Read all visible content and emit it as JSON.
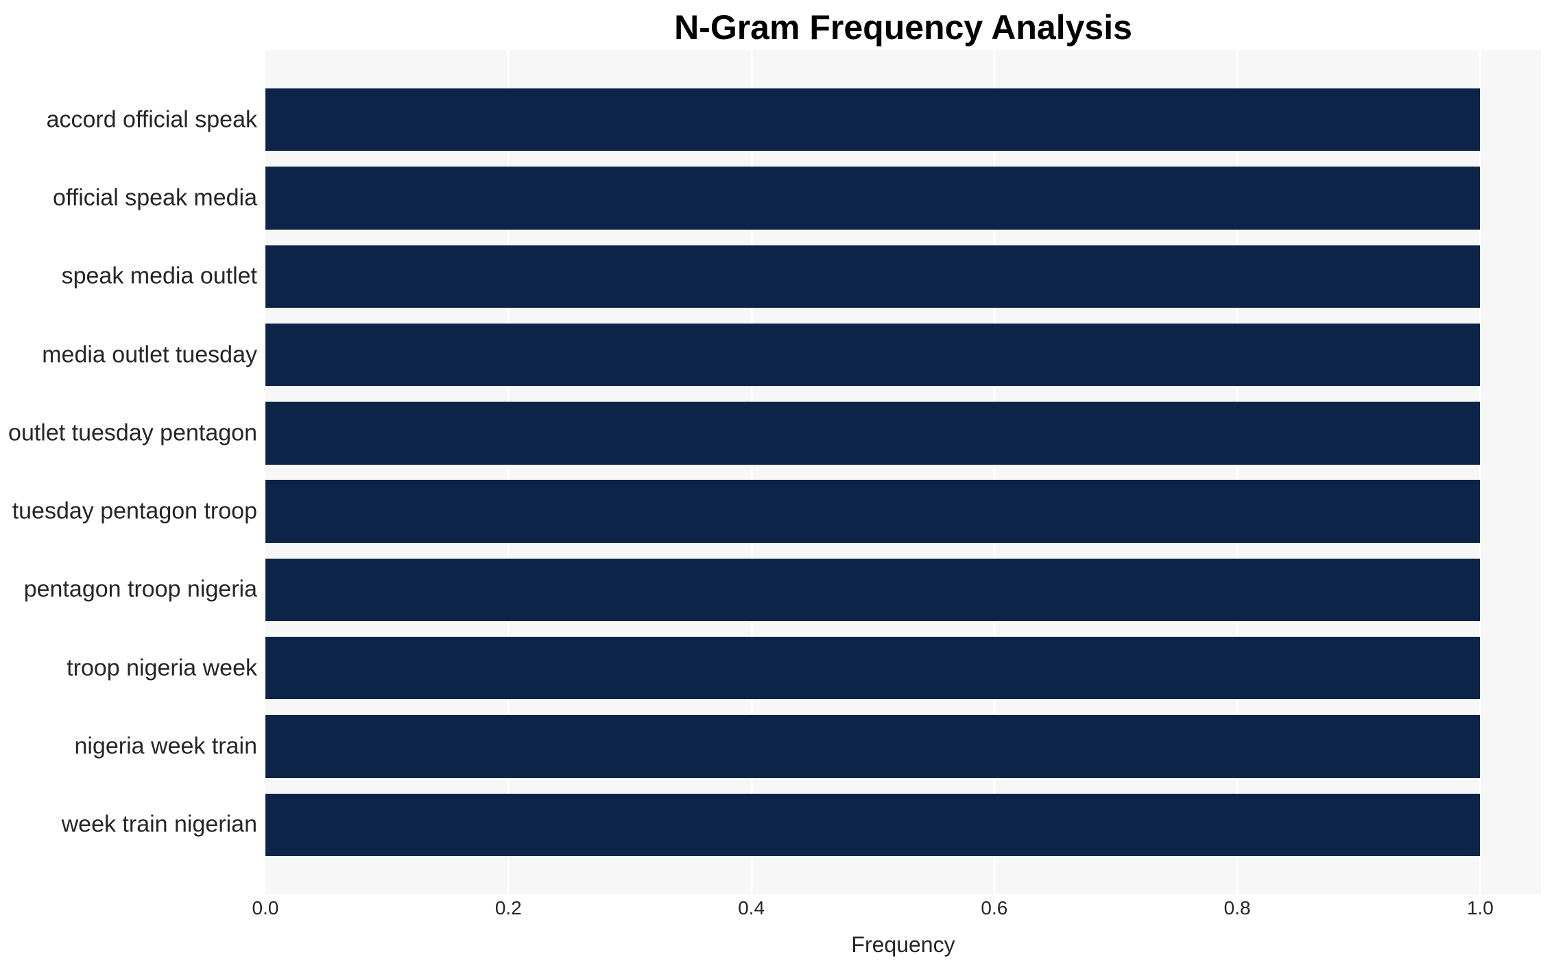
{
  "chart_data": {
    "type": "bar",
    "orientation": "horizontal",
    "title": "N-Gram Frequency Analysis",
    "xlabel": "Frequency",
    "ylabel": "",
    "categories": [
      "accord official speak",
      "official speak media",
      "speak media outlet",
      "media outlet tuesday",
      "outlet tuesday pentagon",
      "tuesday pentagon troop",
      "pentagon troop nigeria",
      "troop nigeria week",
      "nigeria week train",
      "week train nigerian"
    ],
    "values": [
      1.0,
      1.0,
      1.0,
      1.0,
      1.0,
      1.0,
      1.0,
      1.0,
      1.0,
      1.0
    ],
    "x_ticks": [
      0.0,
      0.2,
      0.4,
      0.6,
      0.8,
      1.0
    ],
    "x_tick_labels": [
      "0.0",
      "0.2",
      "0.4",
      "0.6",
      "0.8",
      "1.0"
    ],
    "xlim": [
      0,
      1.05
    ],
    "grid": {
      "vertical": true,
      "horizontal": false
    },
    "legend": "none",
    "colors": {
      "bar": "#0b2447",
      "plot_background": "#f7f7f7",
      "figure_background": "#ffffff",
      "grid_line": "#ffffff",
      "tick_text": "#262626",
      "title_text": "#000000"
    },
    "layout": {
      "y_offset_units": 0.89,
      "y_span_units": 10.78,
      "bar_height_units": 0.8
    }
  }
}
